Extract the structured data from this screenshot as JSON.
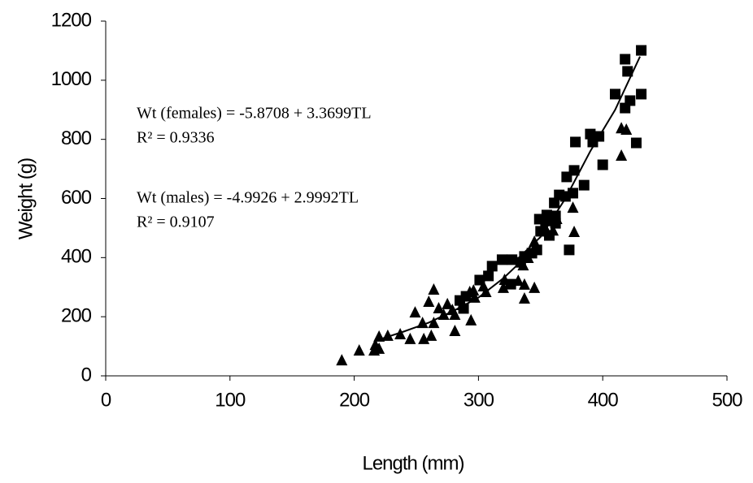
{
  "chart_data": {
    "type": "scatter",
    "x_label": "Length (mm)",
    "y_label": "Weight  (g)",
    "annotations": [
      "Wt (females) = -5.8708 + 3.3699TL",
      "R² = 0.9336",
      "Wt (males) = -4.9926 + 2.9992TL",
      "R² = 0.9107"
    ],
    "xlim": [
      0,
      500
    ],
    "xticks": [
      0,
      100,
      200,
      300,
      400,
      500
    ],
    "ylim": [
      0,
      1200
    ],
    "yticks": [
      0,
      200,
      400,
      600,
      800,
      1000,
      1200
    ],
    "series": [
      {
        "marker": "square",
        "color": "#000000",
        "x": [
          431,
          418,
          420,
          410,
          422,
          431,
          418,
          427,
          400,
          392,
          397,
          390,
          378,
          377,
          371,
          385,
          376,
          370,
          365,
          361,
          355,
          354,
          362,
          362,
          349,
          350,
          373,
          357,
          347,
          343,
          337,
          334,
          327,
          319,
          311,
          326,
          308,
          301,
          290,
          285,
          288
        ],
        "values": [
          1101,
          1071,
          1030,
          953,
          931,
          953,
          906,
          788,
          714,
          791,
          810,
          818,
          791,
          695,
          673,
          645,
          618,
          607,
          612,
          585,
          544,
          524,
          516,
          541,
          530,
          489,
          426,
          475,
          426,
          415,
          404,
          384,
          393,
          393,
          371,
          310,
          338,
          324,
          269,
          255,
          228
        ]
      },
      {
        "marker": "triangle",
        "color": "#000000",
        "x": [
          415,
          419,
          415,
          376,
          363,
          377,
          360,
          354,
          345,
          340,
          336,
          345,
          337,
          337,
          332,
          321,
          320,
          304,
          306,
          296,
          297,
          287,
          294,
          281,
          275,
          279,
          272,
          264,
          264,
          268,
          260,
          249,
          255,
          245,
          256,
          237,
          227,
          220,
          217,
          216,
          204,
          190,
          220,
          262,
          281,
          293
        ],
        "values": [
          837,
          832,
          744,
          568,
          530,
          486,
          491,
          497,
          453,
          398,
          373,
          297,
          261,
          308,
          321,
          324,
          297,
          302,
          283,
          288,
          264,
          239,
          187,
          206,
          242,
          222,
          206,
          178,
          291,
          228,
          250,
          214,
          178,
          124,
          124,
          140,
          135,
          132,
          104,
          85,
          85,
          52,
          91,
          135,
          151,
          283
        ]
      }
    ],
    "trendlines": [
      {
        "color": "#000000",
        "x": [
          218,
          240,
          260,
          280,
          300,
          320,
          340
        ],
        "values": [
          120,
          150,
          180,
          220,
          265,
          330,
          410
        ]
      },
      {
        "color": "#000000",
        "x": [
          330,
          350,
          370,
          390,
          410,
          430
        ],
        "values": [
          390,
          470,
          600,
          760,
          900,
          1080
        ]
      }
    ]
  }
}
